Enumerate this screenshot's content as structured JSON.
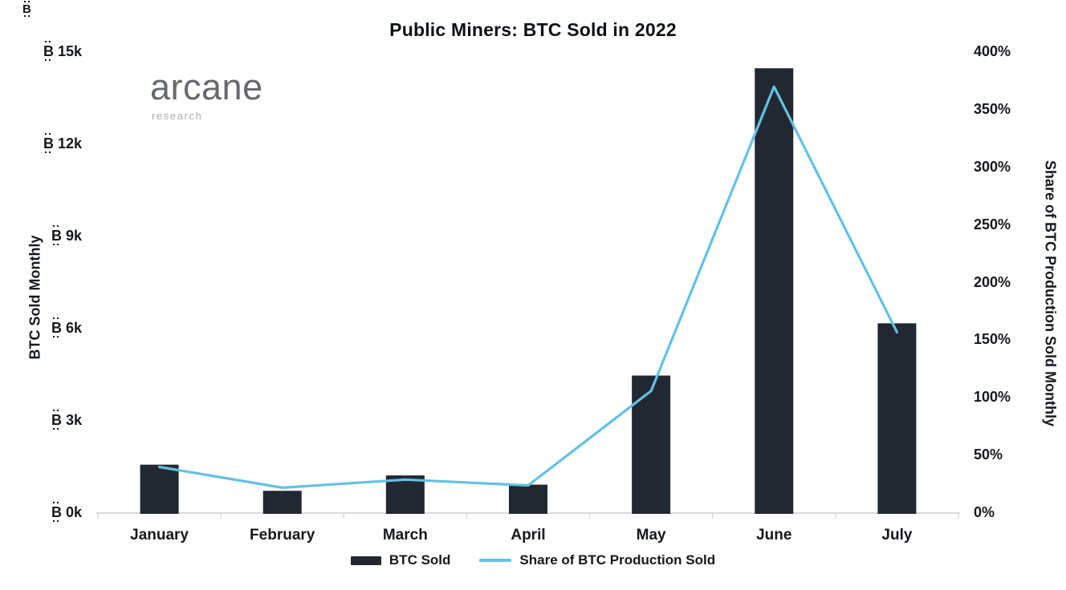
{
  "title": "Public Miners: BTC Sold in 2022",
  "logo": {
    "name": "arcane",
    "sub": "research"
  },
  "glyphs": {
    "bitcoin_b": "B"
  },
  "colors": {
    "bar": "#222832",
    "line": "#63c1e5",
    "axis": "#d9d9d9",
    "text": "#15181c",
    "logo_main": "#66696d",
    "logo_sub": "#a7abae",
    "background": "#ffffff"
  },
  "chart_data": {
    "type": "combo",
    "title": "Public Miners: BTC Sold in 2022",
    "categories": [
      "January",
      "February",
      "March",
      "April",
      "May",
      "June",
      "July"
    ],
    "series": [
      {
        "name": "BTC Sold",
        "type": "bar",
        "axis": "left",
        "values": [
          1600,
          750,
          1250,
          950,
          4500,
          14500,
          6200
        ]
      },
      {
        "name": "Share of BTC Production Sold",
        "type": "line",
        "axis": "right",
        "values": [
          40,
          22,
          29,
          24,
          106,
          370,
          157
        ]
      }
    ],
    "left_axis": {
      "title": "BTC Sold Monthly",
      "unit": "₿",
      "tick_labels": [
        "0k",
        "3k",
        "6k",
        "9k",
        "12k",
        "15k"
      ],
      "range": [
        0,
        15000
      ]
    },
    "right_axis": {
      "title": "Share of BTC Production Sold Monthly",
      "tick_labels": [
        "0%",
        "50%",
        "100%",
        "150%",
        "200%",
        "250%",
        "300%",
        "350%",
        "400%"
      ],
      "range": [
        0,
        400
      ]
    },
    "grid": false,
    "legend_position": "bottom"
  }
}
